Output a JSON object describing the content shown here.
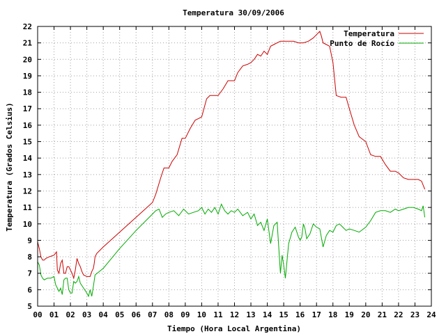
{
  "chart_data": {
    "type": "line",
    "title": "Temperatura 30/09/2006",
    "xlabel": "Tiempo (Hora Local Argentina)",
    "ylabel": "Temperatura (Grados Celsius)",
    "xlim": [
      0,
      24
    ],
    "ylim": [
      5,
      22
    ],
    "grid": true,
    "legend_position": "top-right",
    "x_ticks": [
      "00",
      "01",
      "02",
      "03",
      "04",
      "05",
      "06",
      "07",
      "08",
      "09",
      "10",
      "11",
      "12",
      "13",
      "14",
      "15",
      "16",
      "17",
      "18",
      "19",
      "20",
      "21",
      "22",
      "23",
      "24"
    ],
    "y_ticks": [
      "5",
      "6",
      "7",
      "8",
      "9",
      "10",
      "11",
      "12",
      "13",
      "14",
      "15",
      "16",
      "17",
      "18",
      "19",
      "20",
      "21",
      "22"
    ],
    "series": [
      {
        "name": "Temperatura",
        "color": "#cc0000",
        "x": [
          0.0,
          0.1,
          0.2,
          0.3,
          0.4,
          0.5,
          0.7,
          1.0,
          1.15,
          1.2,
          1.3,
          1.4,
          1.5,
          1.6,
          1.7,
          1.8,
          1.9,
          2.1,
          2.2,
          2.3,
          2.4,
          2.5,
          2.6,
          2.7,
          2.8,
          3.0,
          3.2,
          3.3,
          3.4,
          3.45,
          3.5,
          3.6,
          4.0,
          5.0,
          6.0,
          7.0,
          7.2,
          7.5,
          7.7,
          8.0,
          8.2,
          8.5,
          8.8,
          9.0,
          9.3,
          9.6,
          9.8,
          10.0,
          10.3,
          10.5,
          10.8,
          11.0,
          11.3,
          11.6,
          12.0,
          12.2,
          12.5,
          12.8,
          13.0,
          13.2,
          13.4,
          13.6,
          13.8,
          14.0,
          14.2,
          14.4,
          14.6,
          14.8,
          15.0,
          15.3,
          15.6,
          15.9,
          16.2,
          16.5,
          16.8,
          17.0,
          17.2,
          17.3,
          17.4,
          17.6,
          17.8,
          18.0,
          18.2,
          18.5,
          18.8,
          19.0,
          19.3,
          19.6,
          20.0,
          20.3,
          20.6,
          20.9,
          21.2,
          21.5,
          21.8,
          22.0,
          22.3,
          22.6,
          22.9,
          23.2,
          23.4,
          23.6
        ],
        "values": [
          8.9,
          8.5,
          8.0,
          7.8,
          7.8,
          7.9,
          8.0,
          8.1,
          8.3,
          7.2,
          7.0,
          7.6,
          7.8,
          7.0,
          7.0,
          7.4,
          7.4,
          7.0,
          6.7,
          7.2,
          7.9,
          7.6,
          7.4,
          7.1,
          6.9,
          6.8,
          6.8,
          7.1,
          7.3,
          7.6,
          8.0,
          8.2,
          8.6,
          9.5,
          10.4,
          11.3,
          11.8,
          12.8,
          13.4,
          13.4,
          13.8,
          14.2,
          15.2,
          15.2,
          15.8,
          16.3,
          16.4,
          16.5,
          17.6,
          17.8,
          17.8,
          17.8,
          18.2,
          18.7,
          18.7,
          19.2,
          19.6,
          19.7,
          19.8,
          20.0,
          20.3,
          20.2,
          20.5,
          20.3,
          20.8,
          20.9,
          21.0,
          21.1,
          21.1,
          21.1,
          21.1,
          21.0,
          21.0,
          21.1,
          21.3,
          21.5,
          21.7,
          21.4,
          21.0,
          20.9,
          20.8,
          19.8,
          17.8,
          17.7,
          17.7,
          17.0,
          16.0,
          15.3,
          15.0,
          14.2,
          14.1,
          14.1,
          13.6,
          13.2,
          13.2,
          13.1,
          12.8,
          12.7,
          12.7,
          12.7,
          12.6,
          12.1
        ]
      },
      {
        "name": "Punto de Rocío",
        "color": "#00aa00",
        "x": [
          0.0,
          0.1,
          0.2,
          0.3,
          0.4,
          0.6,
          0.8,
          1.0,
          1.1,
          1.2,
          1.3,
          1.4,
          1.5,
          1.6,
          1.7,
          1.8,
          1.9,
          2.0,
          2.1,
          2.2,
          2.3,
          2.4,
          2.5,
          2.6,
          2.8,
          3.0,
          3.1,
          3.2,
          3.3,
          3.4,
          3.5,
          4.0,
          5.0,
          6.0,
          7.0,
          7.2,
          7.4,
          7.6,
          7.8,
          8.0,
          8.3,
          8.6,
          8.9,
          9.2,
          9.5,
          9.8,
          10.0,
          10.2,
          10.4,
          10.6,
          10.8,
          11.0,
          11.2,
          11.4,
          11.6,
          11.8,
          12.0,
          12.2,
          12.5,
          12.8,
          13.0,
          13.2,
          13.4,
          13.6,
          13.8,
          14.0,
          14.2,
          14.4,
          14.6,
          14.8,
          14.9,
          15.0,
          15.1,
          15.3,
          15.5,
          15.7,
          15.9,
          16.0,
          16.1,
          16.2,
          16.3,
          16.4,
          16.6,
          16.8,
          17.0,
          17.2,
          17.4,
          17.6,
          17.8,
          18.0,
          18.2,
          18.4,
          18.6,
          18.8,
          19.0,
          19.3,
          19.6,
          20.0,
          20.3,
          20.6,
          20.9,
          21.2,
          21.5,
          21.8,
          22.0,
          22.3,
          22.6,
          22.9,
          23.2,
          23.4,
          23.5,
          23.6
        ],
        "values": [
          7.7,
          7.5,
          6.9,
          6.7,
          6.6,
          6.7,
          6.7,
          6.8,
          6.3,
          6.1,
          5.9,
          6.1,
          5.7,
          6.6,
          6.7,
          6.7,
          6.0,
          5.8,
          5.8,
          6.5,
          6.4,
          6.5,
          6.8,
          6.4,
          6.1,
          5.8,
          5.6,
          6.0,
          5.6,
          6.2,
          6.9,
          7.3,
          8.5,
          9.6,
          10.6,
          10.8,
          10.9,
          10.4,
          10.6,
          10.7,
          10.8,
          10.5,
          10.9,
          10.6,
          10.7,
          10.8,
          11.0,
          10.6,
          10.9,
          10.7,
          11.0,
          10.6,
          11.2,
          10.8,
          10.6,
          10.8,
          10.7,
          10.9,
          10.5,
          10.7,
          10.3,
          10.6,
          9.9,
          10.1,
          9.6,
          10.3,
          8.8,
          9.9,
          10.1,
          7.0,
          8.1,
          7.5,
          6.7,
          8.8,
          9.5,
          9.8,
          9.2,
          9.0,
          9.2,
          10.0,
          9.7,
          9.1,
          9.4,
          10.0,
          9.8,
          9.7,
          8.6,
          9.3,
          9.6,
          9.5,
          9.9,
          10.0,
          9.8,
          9.6,
          9.7,
          9.6,
          9.5,
          9.8,
          10.2,
          10.7,
          10.8,
          10.8,
          10.7,
          10.9,
          10.8,
          10.9,
          11.0,
          11.0,
          10.9,
          10.8,
          11.1,
          10.4
        ]
      }
    ]
  }
}
